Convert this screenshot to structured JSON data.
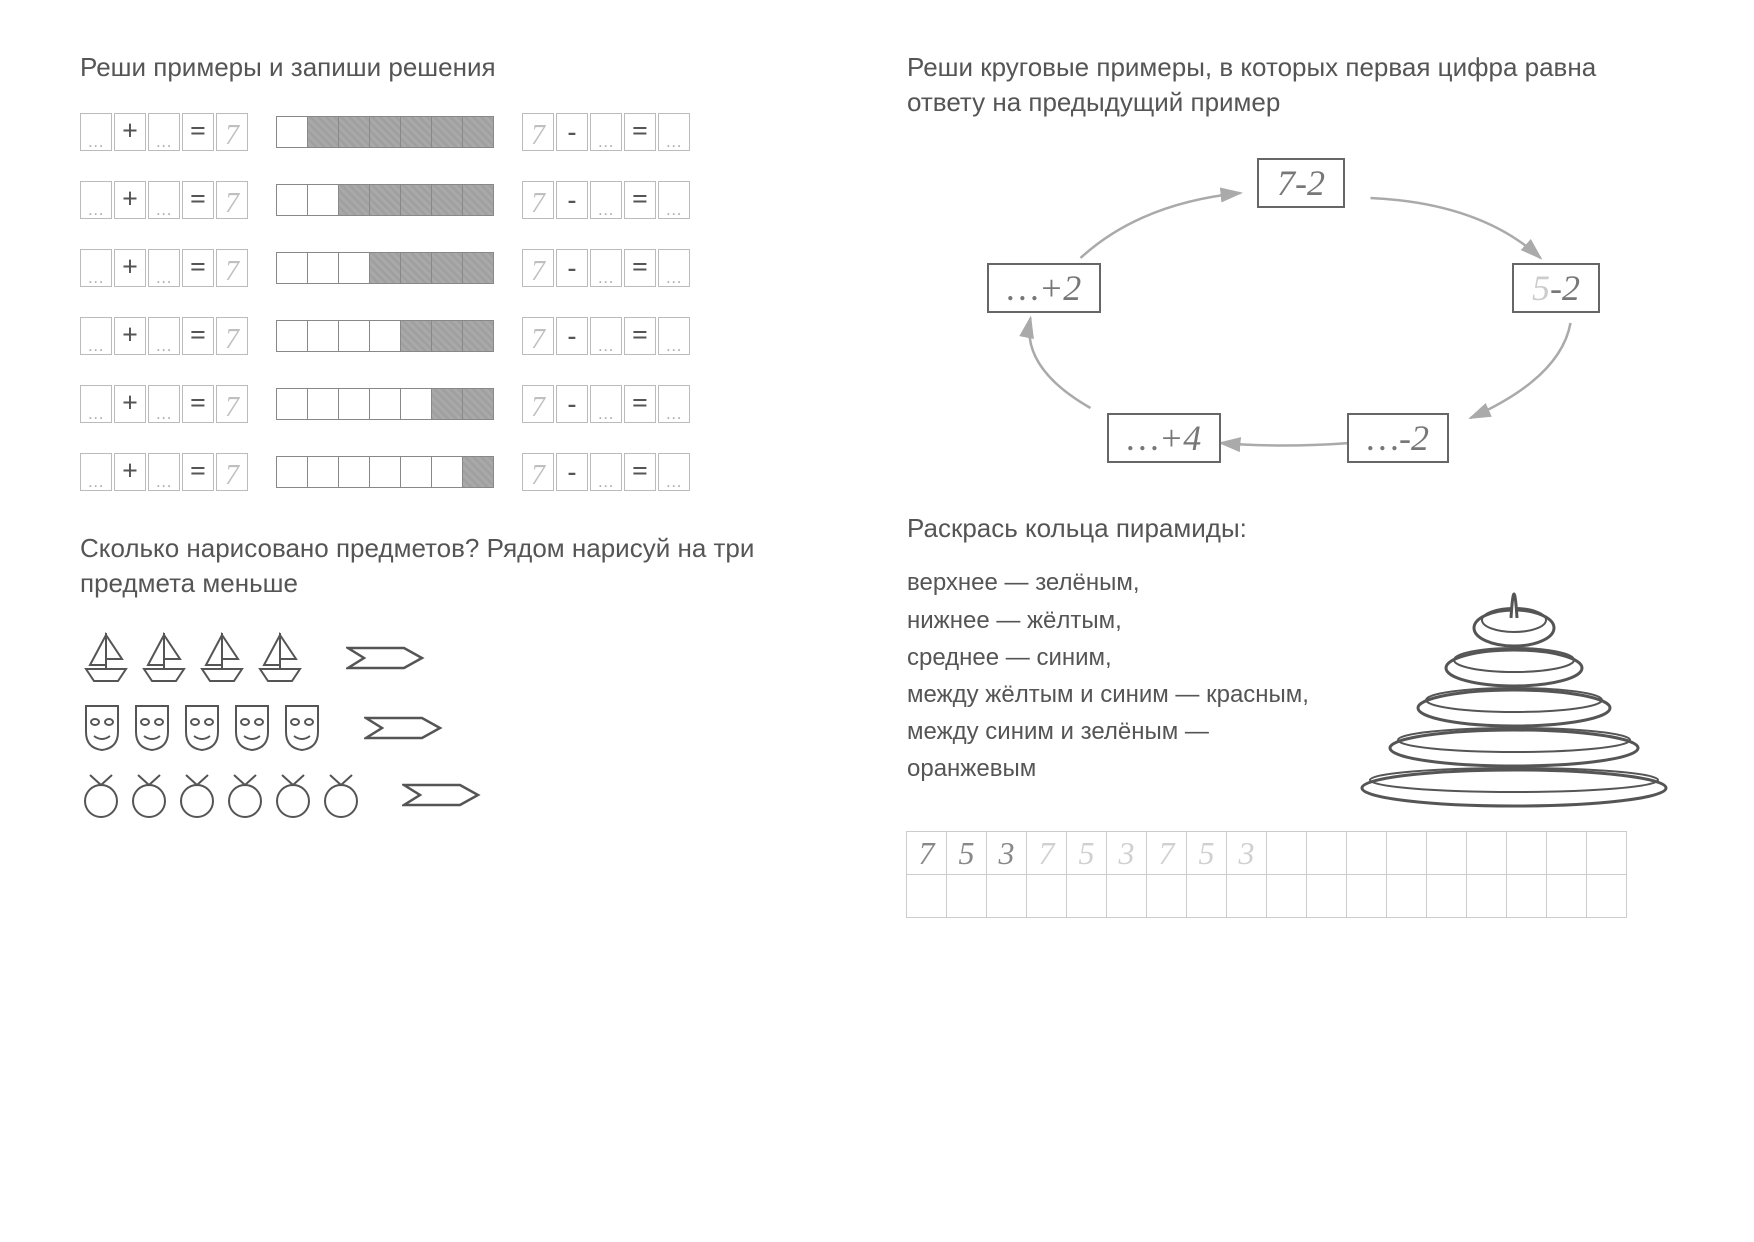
{
  "left": {
    "title1": "Реши примеры и запиши решения",
    "eqRows": [
      {
        "left": {
          "a": "",
          "op": "+",
          "b": "",
          "r": "7"
        },
        "stripWhite": 1,
        "stripFilled": 6,
        "right": {
          "a": "7",
          "op": "-",
          "b": "",
          "r": ""
        }
      },
      {
        "left": {
          "a": "",
          "op": "+",
          "b": "",
          "r": "7"
        },
        "stripWhite": 2,
        "stripFilled": 5,
        "right": {
          "a": "7",
          "op": "-",
          "b": "",
          "r": ""
        }
      },
      {
        "left": {
          "a": "",
          "op": "+",
          "b": "",
          "r": "7"
        },
        "stripWhite": 3,
        "stripFilled": 4,
        "right": {
          "a": "7",
          "op": "-",
          "b": "",
          "r": ""
        }
      },
      {
        "left": {
          "a": "",
          "op": "+",
          "b": "",
          "r": "7"
        },
        "stripWhite": 4,
        "stripFilled": 3,
        "right": {
          "a": "7",
          "op": "-",
          "b": "",
          "r": ""
        }
      },
      {
        "left": {
          "a": "",
          "op": "+",
          "b": "",
          "r": "7"
        },
        "stripWhite": 5,
        "stripFilled": 2,
        "right": {
          "a": "7",
          "op": "-",
          "b": "",
          "r": ""
        }
      },
      {
        "left": {
          "a": "",
          "op": "+",
          "b": "",
          "r": "7"
        },
        "stripWhite": 6,
        "stripFilled": 1,
        "right": {
          "a": "7",
          "op": "-",
          "b": "",
          "r": ""
        }
      }
    ],
    "title2": "Сколько нарисовано предметов? Рядом нарисуй на три предмета меньше",
    "countRows": [
      {
        "shape": "boat",
        "count": 4
      },
      {
        "shape": "mask",
        "count": 5
      },
      {
        "shape": "ball",
        "count": 6
      }
    ]
  },
  "right": {
    "title1": "Реши круговые примеры, в которых первая цифра равна ответу на предыдущий пример",
    "circleBoxes": [
      {
        "text": "7-2",
        "pos": "top",
        "muted": ""
      },
      {
        "text": "5",
        "pos": "tr",
        "tail": "-2",
        "mutedFirst": true
      },
      {
        "text": "…-2",
        "pos": "br"
      },
      {
        "text": "…+4",
        "pos": "bl"
      },
      {
        "text": "…+2",
        "pos": "tl"
      }
    ],
    "title2": "Раскрась кольца пирамиды:",
    "pyrLines": [
      "верхнее — зелёным,",
      "нижнее — жёлтым,",
      "среднее — синим,",
      "между жёлтым и синим — красным,",
      "между синим и зелёным — оранжевым"
    ],
    "pyramid": {
      "rings": 5,
      "topWidth": 80,
      "step": 40,
      "ringH": 36
    },
    "writing": {
      "cols": 18,
      "row1": [
        "7",
        "5",
        "3",
        "7",
        "5",
        "3",
        "7",
        "5",
        "3",
        "",
        "",
        "",
        "",
        "",
        "",
        "",
        "",
        ""
      ],
      "fadedFrom": 3
    }
  },
  "style": {
    "filledColor": "#a9a9a9",
    "emptyColor": "#ffffff",
    "borderColor": "#888888",
    "textColor": "#555555",
    "numColor": "#bfbfbf"
  }
}
